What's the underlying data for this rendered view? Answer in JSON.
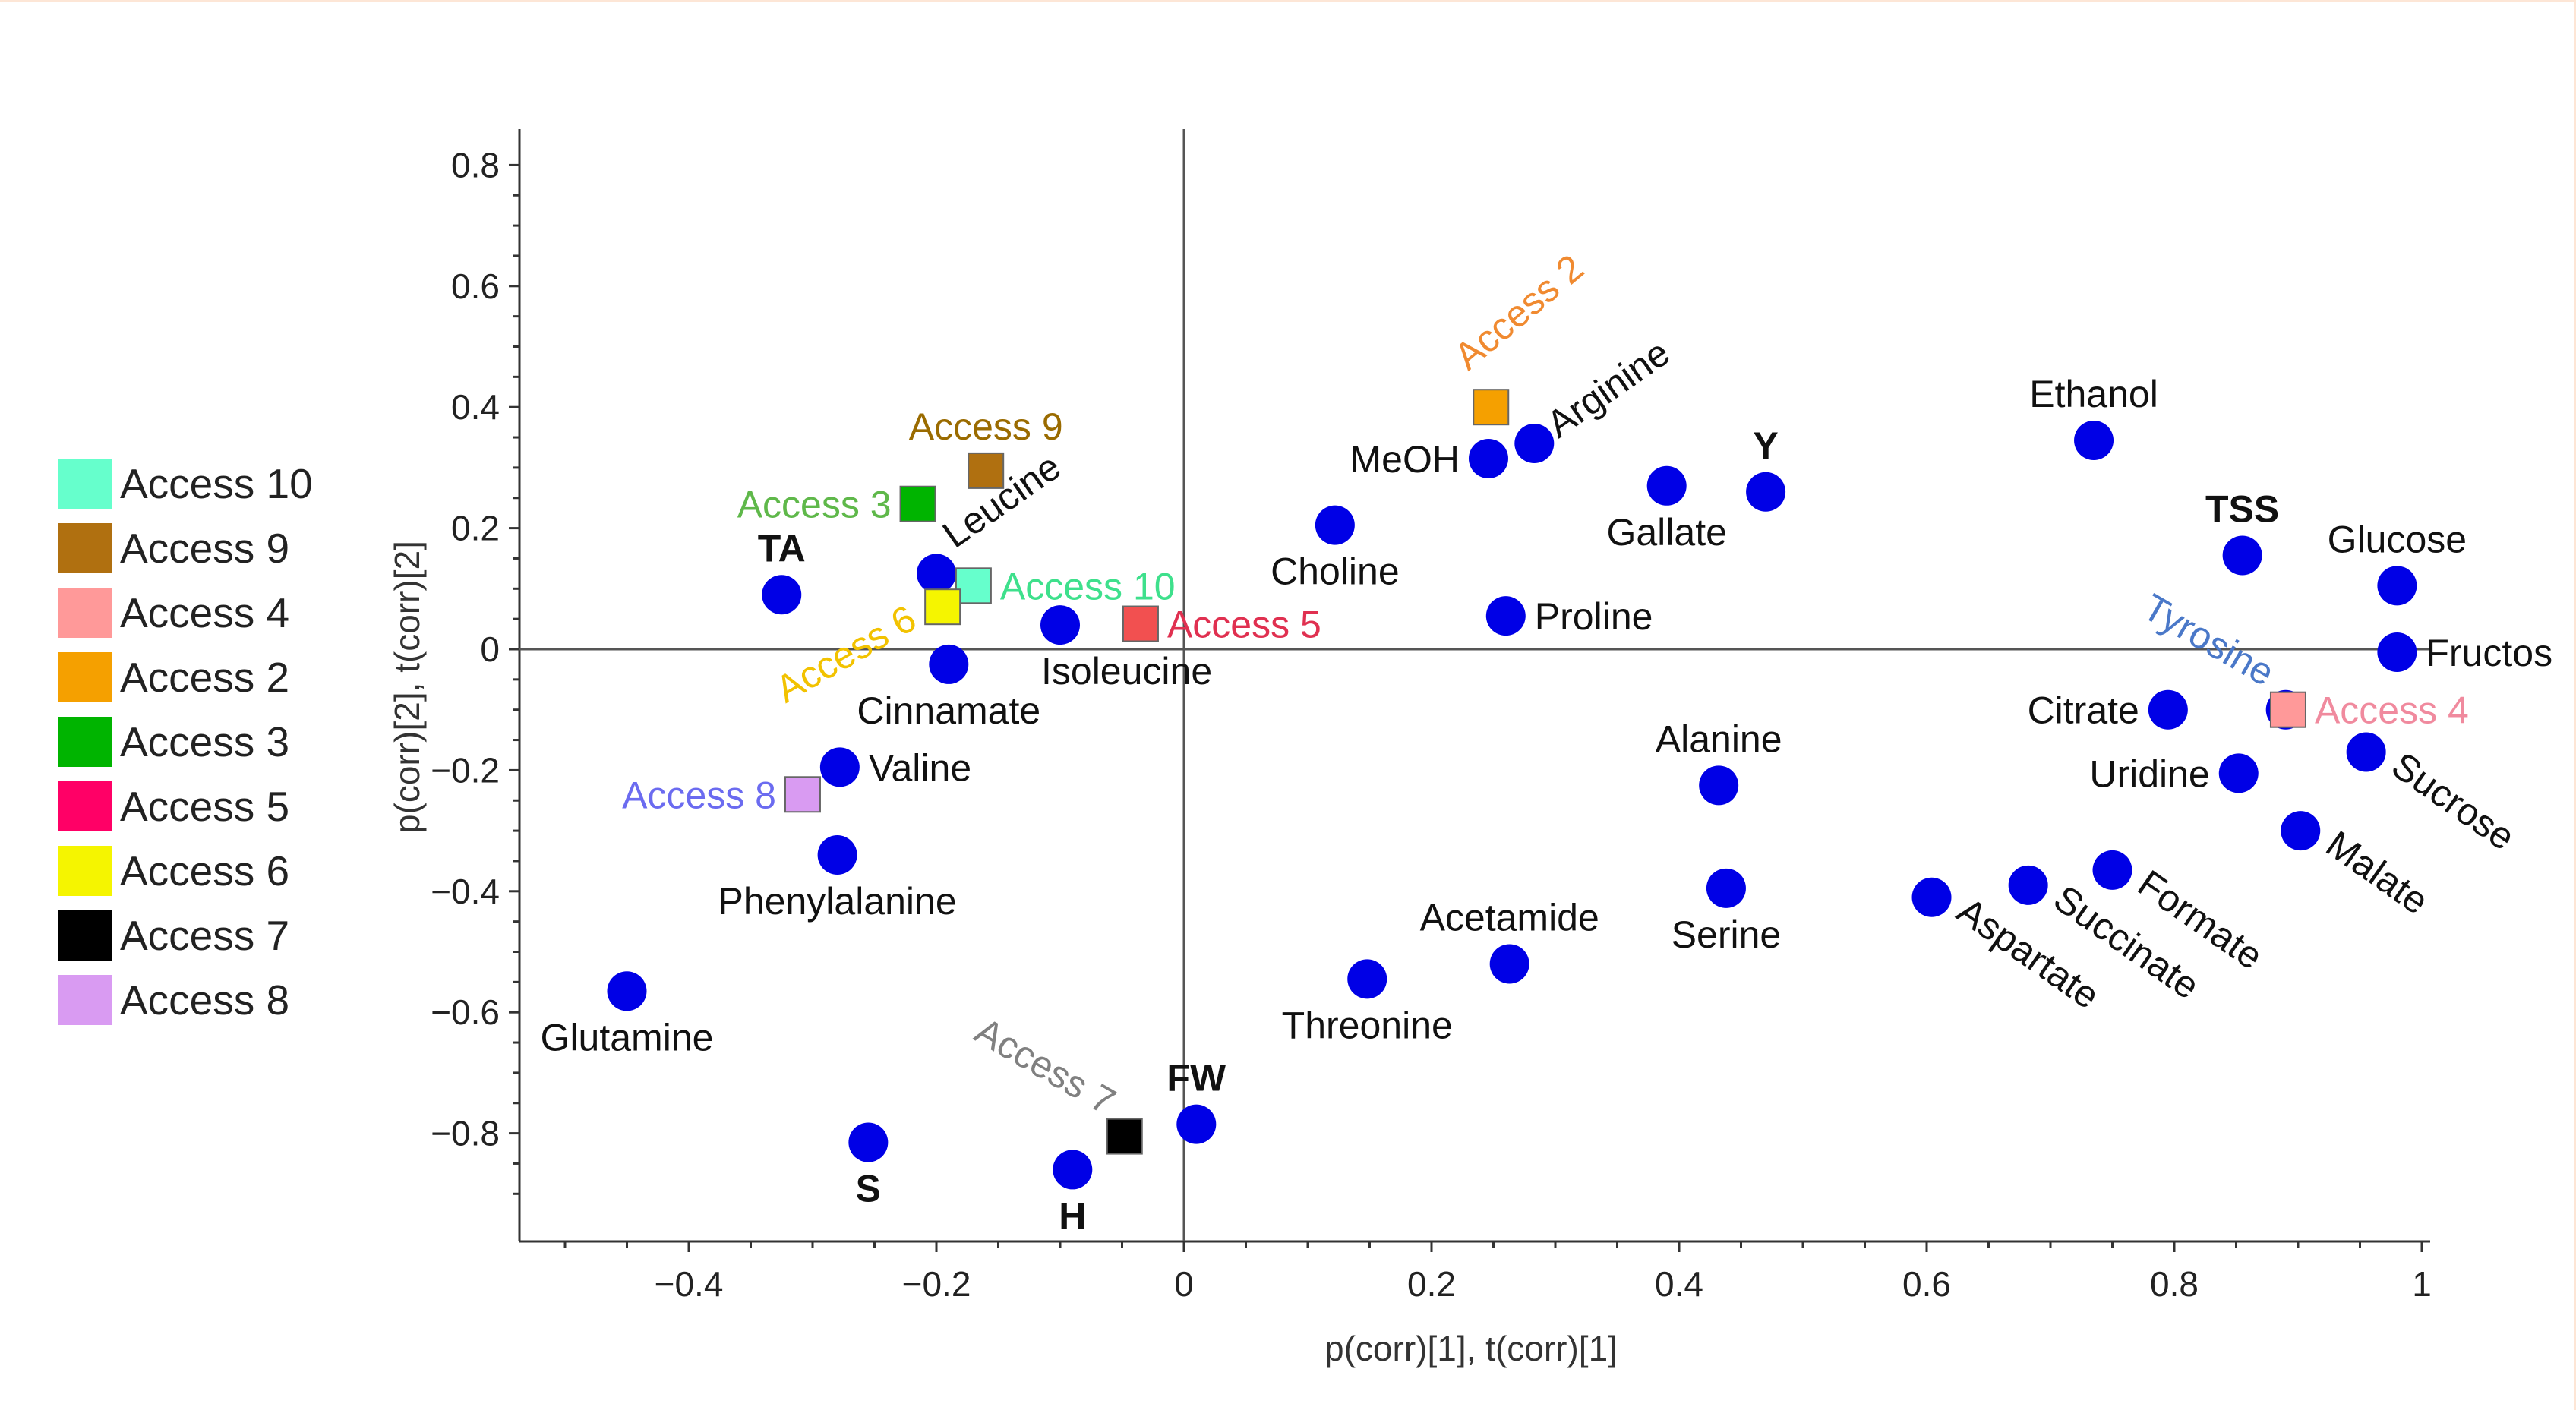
{
  "chart_data": {
    "type": "scatter",
    "xlabel": "p(corr)[1], t(corr)[1]",
    "ylabel": "p(corr)[2], t(corr)[2]",
    "xlim": [
      -0.54,
      1.0
    ],
    "ylim": [
      -0.98,
      0.84
    ],
    "x_ticks": [
      {
        "v": -0.4,
        "label": "−0.4"
      },
      {
        "v": -0.2,
        "label": "−0.2"
      },
      {
        "v": 0,
        "label": "0"
      },
      {
        "v": 0.2,
        "label": "0.2"
      },
      {
        "v": 0.4,
        "label": "0.4"
      },
      {
        "v": 0.6,
        "label": "0.6"
      },
      {
        "v": 0.8,
        "label": "0.8"
      },
      {
        "v": 1,
        "label": "1"
      }
    ],
    "y_ticks": [
      {
        "v": 0.8,
        "label": "0.8"
      },
      {
        "v": 0.6,
        "label": "0.6"
      },
      {
        "v": 0.4,
        "label": "0.4"
      },
      {
        "v": 0.2,
        "label": "0.2"
      },
      {
        "v": 0,
        "label": "0"
      },
      {
        "v": -0.2,
        "label": "−0.2"
      },
      {
        "v": -0.4,
        "label": "−0.4"
      },
      {
        "v": -0.6,
        "label": "−0.6"
      },
      {
        "v": -0.8,
        "label": "−0.8"
      }
    ],
    "grid": false,
    "legend_position": "left",
    "legend": [
      {
        "label": "Access 10",
        "color": "#66ffcc"
      },
      {
        "label": "Access 9",
        "color": "#b07010"
      },
      {
        "label": "Access 4",
        "color": "#ff9999"
      },
      {
        "label": "Access 2",
        "color": "#f5a000"
      },
      {
        "label": "Access 3",
        "color": "#00b400"
      },
      {
        "label": "Access 5",
        "color": "#ff0066"
      },
      {
        "label": "Access 6",
        "color": "#f5f500"
      },
      {
        "label": "Access 7",
        "color": "#000000"
      },
      {
        "label": "Access 8",
        "color": "#d99bf2"
      }
    ],
    "variables": {
      "color": "#0000e6",
      "points": [
        {
          "label": "TA",
          "x": -0.325,
          "y": 0.09,
          "bold": true,
          "pos": "above"
        },
        {
          "label": "Leucine",
          "x": -0.2,
          "y": 0.125,
          "rot": -35,
          "pos": "above-right"
        },
        {
          "label": "Cinnamate",
          "x": -0.19,
          "y": -0.025,
          "pos": "below"
        },
        {
          "label": "Isoleucine",
          "x": -0.1,
          "y": 0.04,
          "pos": "below-right"
        },
        {
          "label": "Valine",
          "x": -0.278,
          "y": -0.195,
          "pos": "right"
        },
        {
          "label": "Phenylalanine",
          "x": -0.28,
          "y": -0.34,
          "pos": "below"
        },
        {
          "label": "Glutamine",
          "x": -0.45,
          "y": -0.565,
          "pos": "below"
        },
        {
          "label": "S",
          "x": -0.255,
          "y": -0.815,
          "bold": true,
          "pos": "below"
        },
        {
          "label": "H",
          "x": -0.09,
          "y": -0.86,
          "bold": true,
          "pos": "below"
        },
        {
          "label": "FW",
          "x": 0.01,
          "y": -0.785,
          "bold": true,
          "pos": "above"
        },
        {
          "label": "Threonine",
          "x": 0.148,
          "y": -0.545,
          "pos": "below"
        },
        {
          "label": "Acetamide",
          "x": 0.263,
          "y": -0.52,
          "pos": "above"
        },
        {
          "label": "Choline",
          "x": 0.122,
          "y": 0.205,
          "pos": "below"
        },
        {
          "label": "MeOH",
          "x": 0.246,
          "y": 0.315,
          "pos": "left"
        },
        {
          "label": "Arginine",
          "x": 0.283,
          "y": 0.34,
          "rot": -35,
          "pos": "right-up"
        },
        {
          "label": "Proline",
          "x": 0.26,
          "y": 0.055,
          "pos": "right"
        },
        {
          "label": "Gallate",
          "x": 0.39,
          "y": 0.27,
          "pos": "below"
        },
        {
          "label": "Y",
          "x": 0.47,
          "y": 0.26,
          "bold": true,
          "pos": "above"
        },
        {
          "label": "Alanine",
          "x": 0.432,
          "y": -0.225,
          "pos": "above"
        },
        {
          "label": "Serine",
          "x": 0.438,
          "y": -0.395,
          "pos": "below"
        },
        {
          "label": "Aspartate",
          "x": 0.604,
          "y": -0.41,
          "rot": 35,
          "pos": "right-down"
        },
        {
          "label": "Succinate",
          "x": 0.682,
          "y": -0.39,
          "rot": 35,
          "pos": "right-down"
        },
        {
          "label": "Formate",
          "x": 0.75,
          "y": -0.365,
          "rot": 35,
          "pos": "right-down"
        },
        {
          "label": "Ethanol",
          "x": 0.735,
          "y": 0.345,
          "pos": "above"
        },
        {
          "label": "TSS",
          "x": 0.855,
          "y": 0.155,
          "bold": true,
          "pos": "above"
        },
        {
          "label": "Glucose",
          "x": 0.98,
          "y": 0.105,
          "pos": "above"
        },
        {
          "label": "Fructos",
          "x": 0.98,
          "y": -0.005,
          "pos": "right"
        },
        {
          "label": "Citrate",
          "x": 0.795,
          "y": -0.1,
          "pos": "left"
        },
        {
          "label": "Tyrosine",
          "x": 0.89,
          "y": -0.1,
          "rot": 30,
          "pos": "above-left",
          "color": "#4a78c8"
        },
        {
          "label": "Uridine",
          "x": 0.852,
          "y": -0.205,
          "pos": "left"
        },
        {
          "label": "Sucrose",
          "x": 0.955,
          "y": -0.17,
          "rot": 35,
          "pos": "right-down"
        },
        {
          "label": "Malate",
          "x": 0.902,
          "y": -0.3,
          "rot": 35,
          "pos": "right-down"
        }
      ]
    },
    "observations": [
      {
        "label": "Access 2",
        "x": 0.248,
        "y": 0.4,
        "color": "#f5a000",
        "text_color": "#f08a30",
        "rot": -40,
        "pos": "above-up"
      },
      {
        "label": "Access 9",
        "x": -0.16,
        "y": 0.295,
        "color": "#b07010",
        "text_color": "#9a6b00",
        "pos": "above"
      },
      {
        "label": "Access 3",
        "x": -0.215,
        "y": 0.24,
        "color": "#00b400",
        "text_color": "#5fb84a",
        "pos": "left"
      },
      {
        "label": "Access 10",
        "x": -0.17,
        "y": 0.105,
        "color": "#66ffcc",
        "text_color": "#3ee08c",
        "pos": "right"
      },
      {
        "label": "Access 6",
        "x": -0.195,
        "y": 0.07,
        "color": "#f5f500",
        "text_color": "#f2c200",
        "rot": -30,
        "pos": "left-down"
      },
      {
        "label": "Access 5",
        "x": -0.035,
        "y": 0.042,
        "color": "#f25050",
        "text_color": "#e03050",
        "pos": "right"
      },
      {
        "label": "Access 4",
        "x": 0.892,
        "y": -0.1,
        "color": "#ff9999",
        "text_color": "#f08a9e",
        "pos": "right"
      },
      {
        "label": "Access 8",
        "x": -0.308,
        "y": -0.24,
        "color": "#d99bf2",
        "text_color": "#6b6bf0",
        "pos": "left"
      },
      {
        "label": "Access 7",
        "x": -0.048,
        "y": -0.805,
        "color": "#000000",
        "text_color": "#808080",
        "rot": 30,
        "pos": "above-left"
      }
    ]
  }
}
